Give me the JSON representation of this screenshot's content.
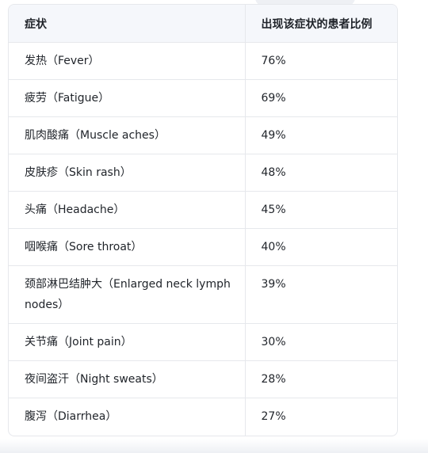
{
  "table": {
    "headers": [
      "症状",
      "出现该症状的患者比例"
    ],
    "rows": [
      {
        "symptom": "发热（Fever）",
        "percent": "76%"
      },
      {
        "symptom": "疲劳（Fatigue）",
        "percent": "69%"
      },
      {
        "symptom": "肌肉酸痛（Muscle aches）",
        "percent": "49%"
      },
      {
        "symptom": "皮肤疹（Skin rash）",
        "percent": "48%"
      },
      {
        "symptom": "头痛（Headache）",
        "percent": "45%"
      },
      {
        "symptom": "咽喉痛（Sore throat）",
        "percent": "40%"
      },
      {
        "symptom": "颈部淋巴结肿大（Enlarged neck lymph nodes）",
        "percent": "39%"
      },
      {
        "symptom": "关节痛（Joint pain）",
        "percent": "30%"
      },
      {
        "symptom": "夜间盗汗（Night sweats）",
        "percent": "28%"
      },
      {
        "symptom": "腹泻（Diarrhea）",
        "percent": "27%"
      }
    ]
  }
}
